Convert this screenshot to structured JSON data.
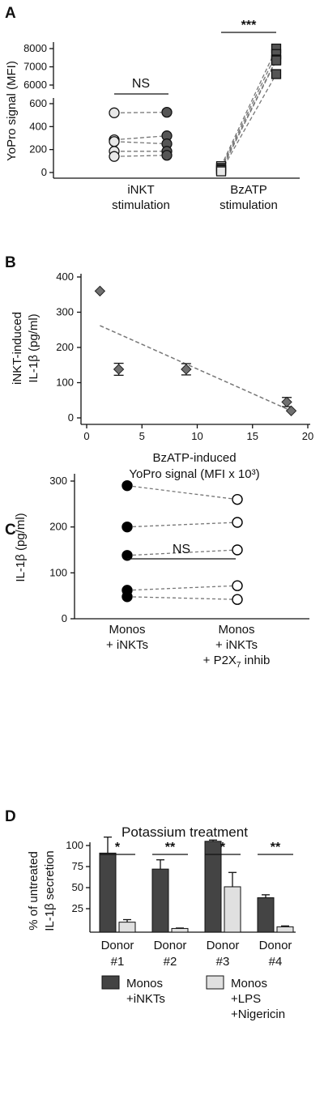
{
  "chart_data": [
    {
      "panel": "A",
      "type": "scatter",
      "ylabel": "YoPro signal (MFI)",
      "y_lower": {
        "ylim": [
          0,
          600
        ],
        "ticks": [
          0,
          200,
          400,
          600
        ]
      },
      "y_upper": {
        "ylim": [
          6000,
          8000
        ],
        "ticks": [
          6000,
          7000,
          8000
        ]
      },
      "groups": [
        {
          "label_lines": [
            "iNKT",
            "stimulation"
          ],
          "significance": "NS",
          "pairs": [
            [
              520,
              525
            ],
            [
              285,
              320
            ],
            [
              270,
              250
            ],
            [
              185,
              185
            ],
            [
              140,
              150
            ]
          ]
        },
        {
          "label_lines": [
            "BzATP",
            "stimulation"
          ],
          "significance": "***",
          "pairs": [
            [
              55,
              8000
            ],
            [
              40,
              7700
            ],
            [
              30,
              7400
            ],
            [
              20,
              7350
            ],
            [
              10,
              6600
            ]
          ]
        }
      ],
      "colors": {
        "before": "#e8e8e8",
        "after": "#555555",
        "line": "#777777"
      }
    },
    {
      "panel": "B",
      "type": "scatter",
      "xlabel_lines": [
        "BzATP-induced",
        "YoPro signal (MFI x 10³)"
      ],
      "ylabel_lines": [
        "iNKT-induced",
        "IL-1β (pg/ml)"
      ],
      "xlim": [
        0,
        20
      ],
      "ylim": [
        0,
        400
      ],
      "xticks": [
        0,
        5,
        10,
        15,
        20
      ],
      "yticks": [
        0,
        100,
        200,
        300,
        400
      ],
      "points": [
        {
          "x": 1.2,
          "y": 360,
          "err": 0
        },
        {
          "x": 2.9,
          "y": 138,
          "err": 17
        },
        {
          "x": 9.0,
          "y": 138,
          "err": 16
        },
        {
          "x": 18.1,
          "y": 45,
          "err": 13
        },
        {
          "x": 18.5,
          "y": 20,
          "err": 0
        }
      ],
      "fit": {
        "x": [
          1.2,
          18.5
        ],
        "y": [
          262,
          20
        ]
      },
      "colors": {
        "point": "#707070",
        "fit": "#777777"
      }
    },
    {
      "panel": "C",
      "type": "scatter",
      "ylabel": "IL-1β (pg/ml)",
      "ylim": [
        0,
        300
      ],
      "yticks": [
        0,
        100,
        200,
        300
      ],
      "significance": "NS",
      "groups": [
        {
          "label_lines": [
            "Monos",
            "+ iNKTs"
          ]
        },
        {
          "label_lines": [
            "Monos",
            "+ iNKTs",
            "+ P2X",
            "7",
            " inhib"
          ]
        }
      ],
      "pairs": [
        [
          290,
          260
        ],
        [
          200,
          210
        ],
        [
          138,
          150
        ],
        [
          62,
          72
        ],
        [
          48,
          42
        ]
      ],
      "colors": {
        "before": "#000000",
        "after": "#ffffff",
        "line": "#777777"
      }
    },
    {
      "panel": "D",
      "type": "bar",
      "title": "Potassium treatment",
      "ylabel_lines": [
        "% of untreated",
        "IL-1β secretion"
      ],
      "ylim": [
        0,
        110
      ],
      "yticks": [
        25,
        50,
        75,
        100
      ],
      "categories": [
        [
          "Donor",
          "#1"
        ],
        [
          "Donor",
          "#2"
        ],
        [
          "Donor",
          "#3"
        ],
        [
          "Donor",
          "#4"
        ]
      ],
      "series": [
        {
          "name_lines": [
            "Monos",
            "+iNKTs"
          ],
          "values": [
            91,
            72,
            105,
            38
          ],
          "errors": [
            19,
            11,
            1.5,
            3.5
          ],
          "color": "#444444"
        },
        {
          "name_lines": [
            "Monos",
            "+LPS",
            "+Nigericin"
          ],
          "values": [
            9,
            1.5,
            51,
            3.5
          ],
          "errors": [
            3,
            0.5,
            17,
            1
          ],
          "color": "#e0e0e0"
        }
      ],
      "significance": [
        "*",
        "**",
        "*",
        "**"
      ]
    }
  ]
}
